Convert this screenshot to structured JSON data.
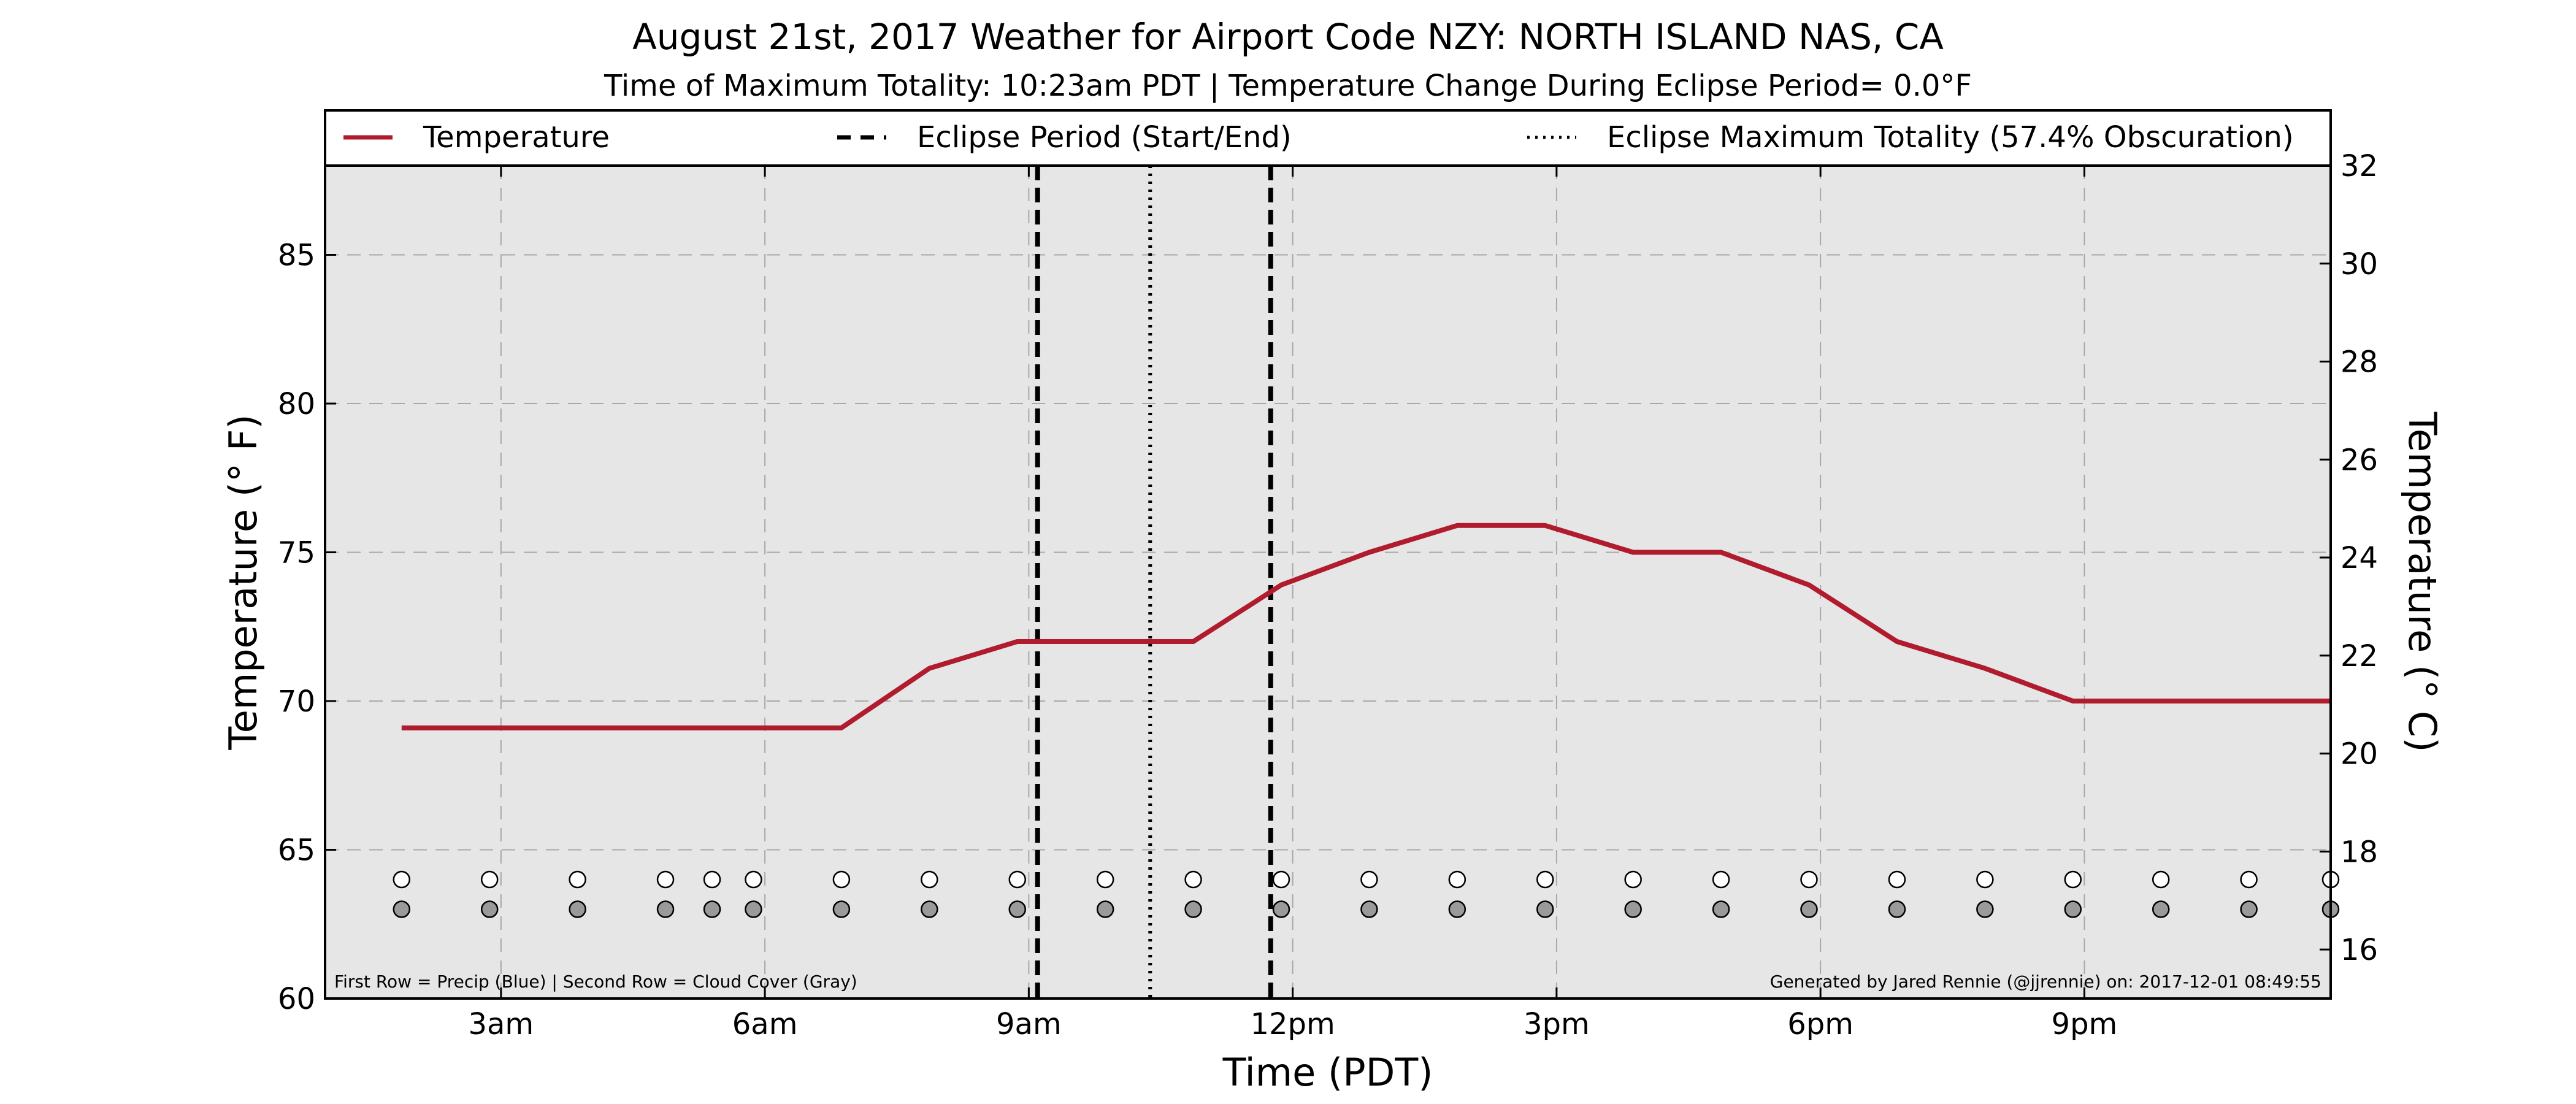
{
  "colors": {
    "temperature_line": "#b01c2e",
    "plot_background": "#e6e6e6",
    "grid": "#a8a8a8",
    "cloud_marker": "#9a9a9a",
    "precip_marker": "#ffffff"
  },
  "chart_data": {
    "type": "line",
    "title": "August 21st, 2017 Weather for Airport Code NZY: NORTH ISLAND NAS, CA",
    "subtitle": "Time of Maximum Totality: 10:23am PDT | Temperature Change During Eclipse Period= 0.0°F",
    "xlabel": "Time (PDT)",
    "ylabel": "Temperature (° F)",
    "ylabel_right": "Temperature (° C)",
    "x_unit": "hours since midnight PDT",
    "xlim": [
      1.0,
      23.8
    ],
    "ylim": [
      60,
      88
    ],
    "ylim_right": [
      15.0,
      32.0
    ],
    "x_ticks": [
      {
        "x": 3,
        "label": "3am"
      },
      {
        "x": 6,
        "label": "6am"
      },
      {
        "x": 9,
        "label": "9am"
      },
      {
        "x": 12,
        "label": "12pm"
      },
      {
        "x": 15,
        "label": "3pm"
      },
      {
        "x": 18,
        "label": "6pm"
      },
      {
        "x": 21,
        "label": "9pm"
      }
    ],
    "y_ticks": [
      60,
      65,
      70,
      75,
      80,
      85
    ],
    "y_ticks_right": [
      16,
      18,
      20,
      22,
      24,
      26,
      28,
      30,
      32
    ],
    "grid": true,
    "legend_position": "top",
    "legend": [
      {
        "label": "Temperature",
        "style": "solid"
      },
      {
        "label": "Eclipse Period (Start/End)",
        "style": "dashed"
      },
      {
        "label": "Eclipse Maximum Totality (57.4% Obscuration)",
        "style": "dotted"
      }
    ],
    "series": [
      {
        "name": "Temperature",
        "x": [
          1.87,
          6.87,
          7.87,
          8.87,
          10.87,
          11.87,
          12.87,
          13.87,
          14.87,
          15.87,
          16.87,
          17.87,
          18.87,
          19.87,
          20.87,
          23.8
        ],
        "y": [
          69.1,
          69.1,
          71.1,
          72.0,
          72.0,
          73.9,
          75.0,
          75.9,
          75.9,
          75.0,
          75.0,
          73.9,
          72.0,
          71.1,
          70.0,
          70.0
        ]
      }
    ],
    "eclipse_start": 9.1,
    "eclipse_end": 11.75,
    "eclipse_max": 10.38,
    "marker_rows": {
      "x": [
        1.87,
        2.87,
        3.87,
        4.87,
        5.4,
        5.87,
        6.87,
        7.87,
        8.87,
        9.87,
        10.87,
        11.87,
        12.87,
        13.87,
        14.87,
        15.87,
        16.87,
        17.87,
        18.87,
        19.87,
        20.87,
        21.87,
        22.87,
        23.8
      ],
      "precip_y": 64.0,
      "cloud_y": 63.0
    },
    "annotations": {
      "left": "First Row = Precip (Blue) | Second Row = Cloud Cover (Gray)",
      "right": "Generated by Jared Rennie (@jjrennie) on: 2017-12-01 08:49:55"
    }
  }
}
